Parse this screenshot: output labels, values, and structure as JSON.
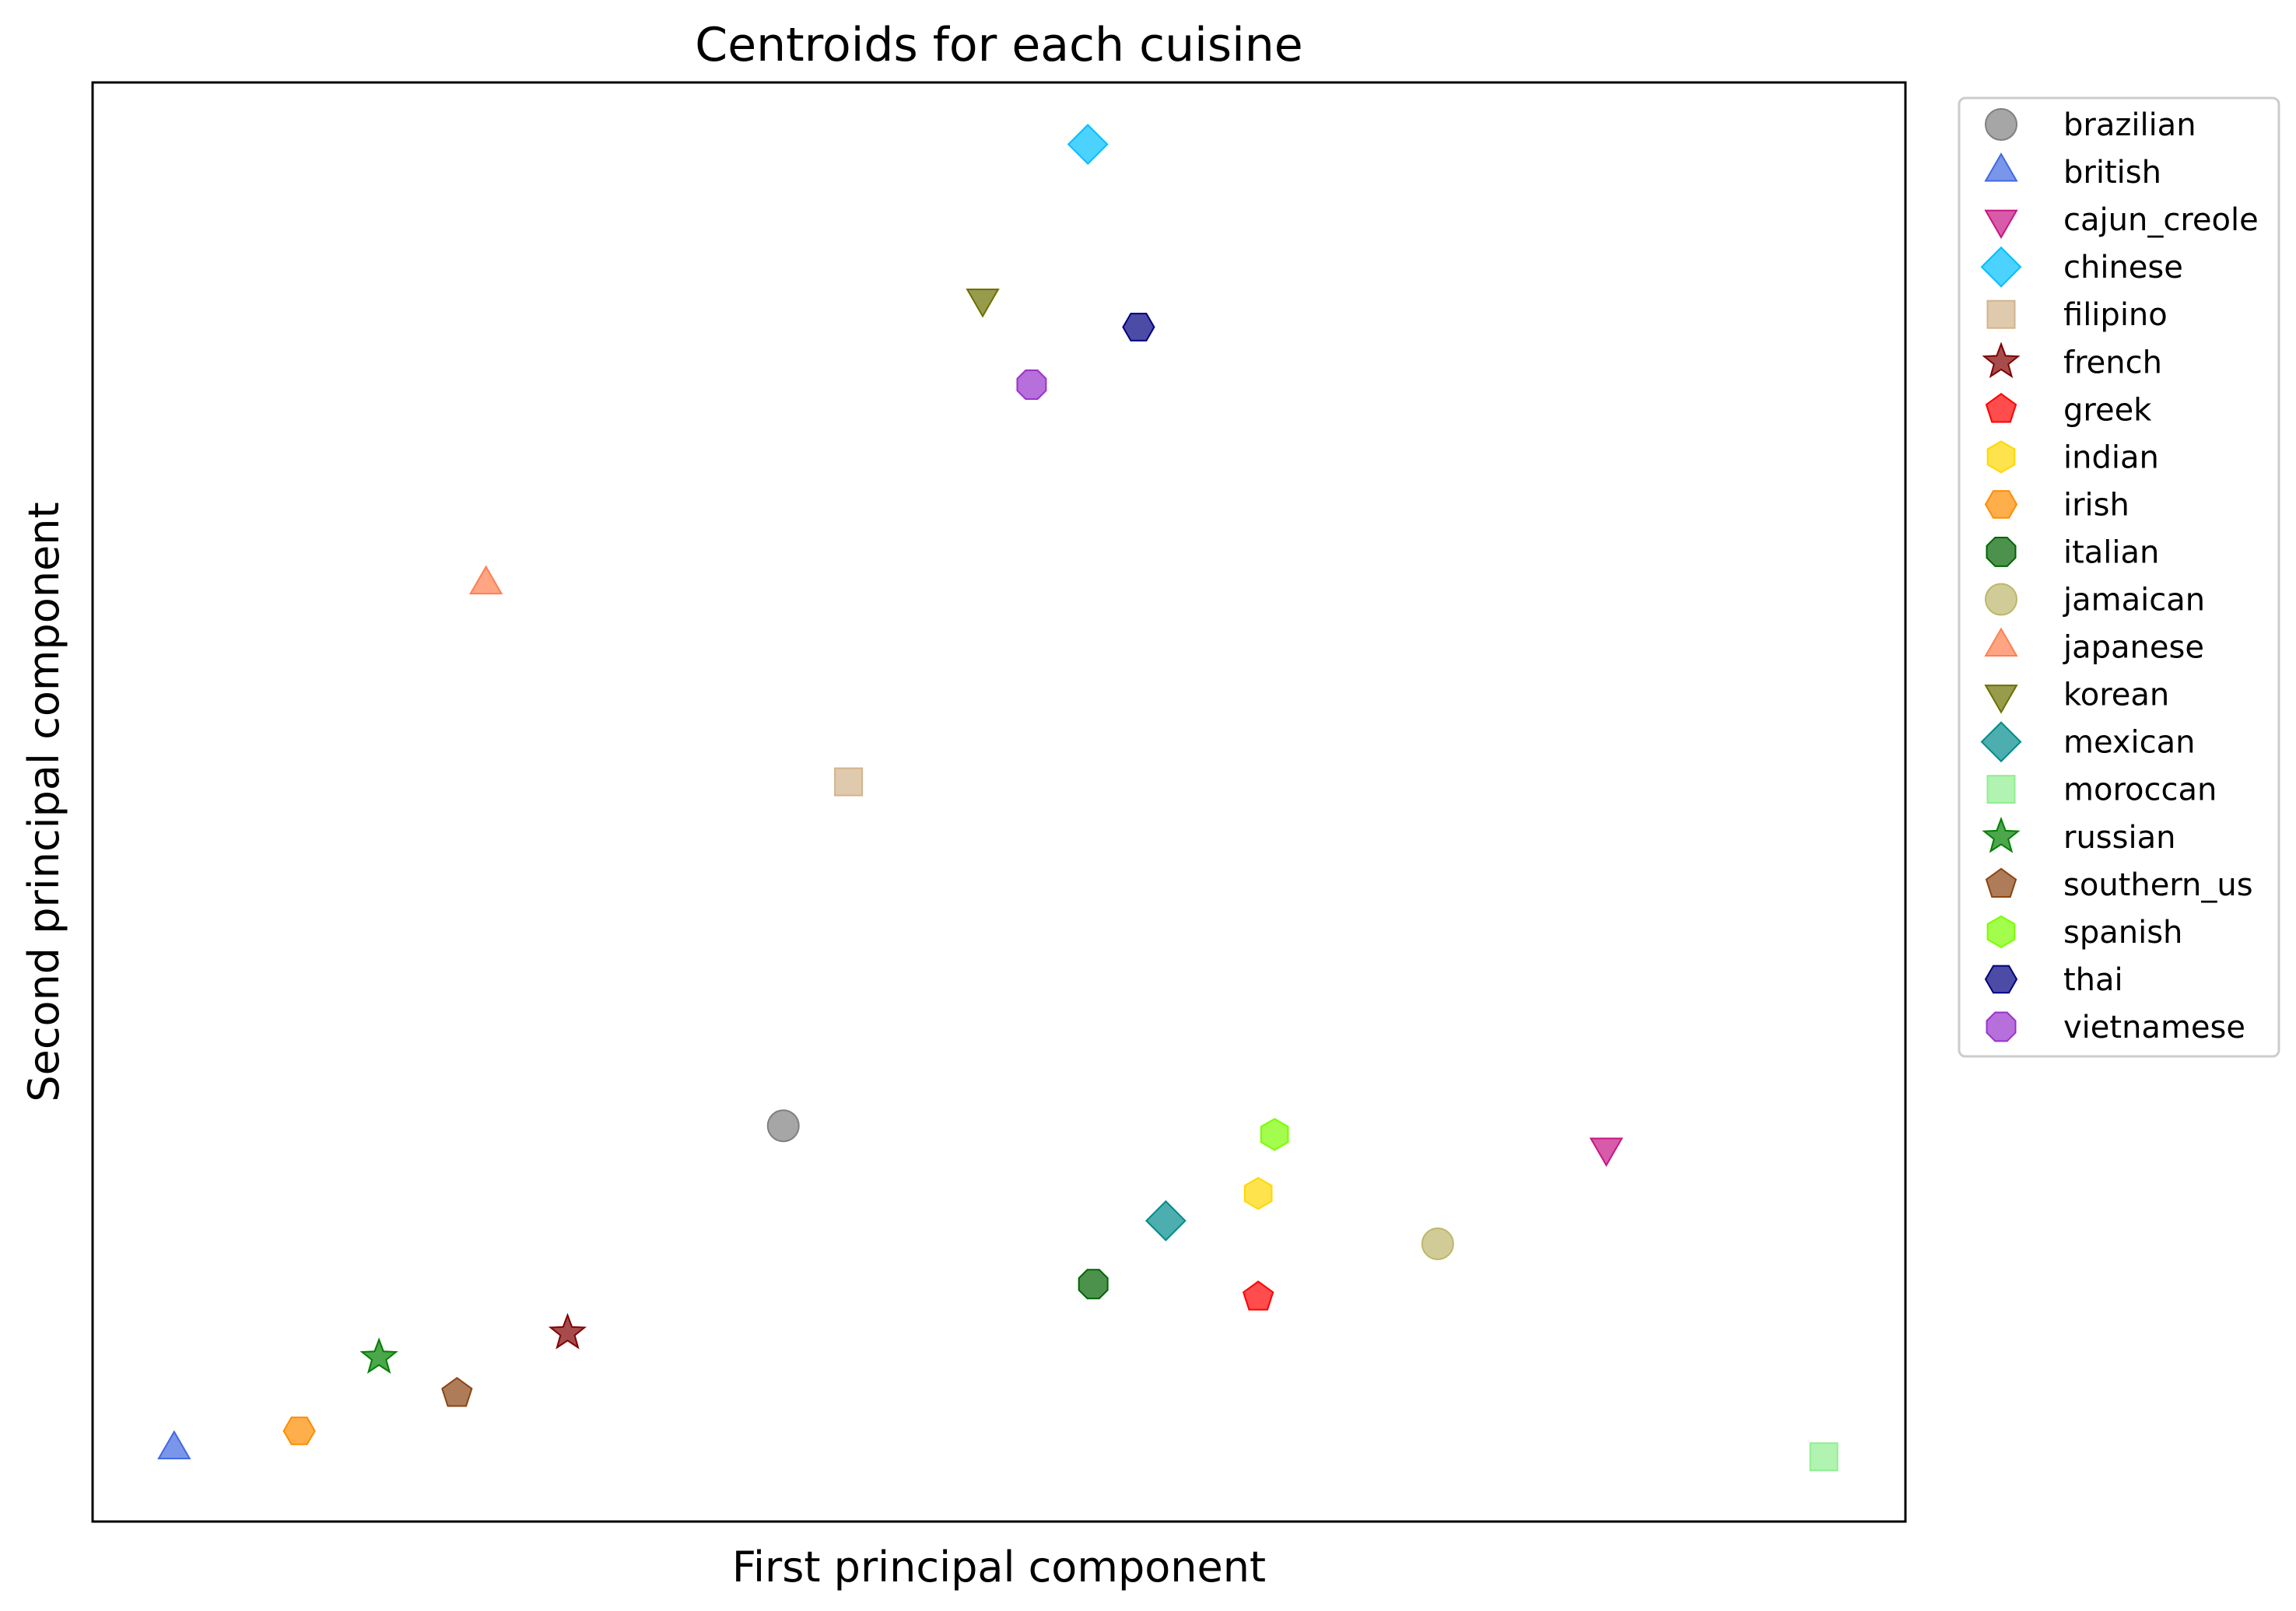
{
  "chart_data": {
    "type": "scatter",
    "title": "Centroids for each cuisine",
    "xlabel": "First principal component",
    "ylabel": "Second principal component",
    "xlim": [
      0,
      1
    ],
    "ylim": [
      0,
      1
    ],
    "xticks": [],
    "yticks": [],
    "grid": false,
    "legend_position": "outside-right",
    "series": [
      {
        "name": "brazilian",
        "marker": "circle",
        "color": "#808080",
        "x": 0.381,
        "y": 0.275
      },
      {
        "name": "british",
        "marker": "triangle-up",
        "color": "#4169e1",
        "x": 0.045,
        "y": 0.05
      },
      {
        "name": "cajun_creole",
        "marker": "triangle-down",
        "color": "#c71585",
        "x": 0.835,
        "y": 0.26
      },
      {
        "name": "chinese",
        "marker": "diamond",
        "color": "#00bfff",
        "x": 0.549,
        "y": 0.957
      },
      {
        "name": "filipino",
        "marker": "square",
        "color": "#d2b48c",
        "x": 0.417,
        "y": 0.514
      },
      {
        "name": "french",
        "marker": "star",
        "color": "#800000",
        "x": 0.262,
        "y": 0.131
      },
      {
        "name": "greek",
        "marker": "pentagon",
        "color": "#ff0000",
        "x": 0.643,
        "y": 0.156
      },
      {
        "name": "indian",
        "marker": "hexagon",
        "color": "#ffd700",
        "x": 0.643,
        "y": 0.228
      },
      {
        "name": "irish",
        "marker": "hexagon-flat",
        "color": "#ff8c00",
        "x": 0.114,
        "y": 0.063
      },
      {
        "name": "italian",
        "marker": "octagon",
        "color": "#006400",
        "x": 0.552,
        "y": 0.165
      },
      {
        "name": "jamaican",
        "marker": "circle",
        "color": "#bdb76b",
        "x": 0.742,
        "y": 0.193
      },
      {
        "name": "japanese",
        "marker": "triangle-up",
        "color": "#ff7f50",
        "x": 0.217,
        "y": 0.651
      },
      {
        "name": "korean",
        "marker": "triangle-down",
        "color": "#6b7000",
        "x": 0.491,
        "y": 0.85
      },
      {
        "name": "mexican",
        "marker": "diamond",
        "color": "#008b8b",
        "x": 0.592,
        "y": 0.209
      },
      {
        "name": "moroccan",
        "marker": "square",
        "color": "#90ee90",
        "x": 0.955,
        "y": 0.045
      },
      {
        "name": "russian",
        "marker": "star",
        "color": "#008000",
        "x": 0.158,
        "y": 0.114
      },
      {
        "name": "southern_us",
        "marker": "pentagon",
        "color": "#8b4513",
        "x": 0.201,
        "y": 0.089
      },
      {
        "name": "spanish",
        "marker": "hexagon",
        "color": "#7cfc00",
        "x": 0.652,
        "y": 0.269
      },
      {
        "name": "thai",
        "marker": "hexagon-flat",
        "color": "#000080",
        "x": 0.577,
        "y": 0.83
      },
      {
        "name": "vietnamese",
        "marker": "octagon",
        "color": "#9932cc",
        "x": 0.518,
        "y": 0.79
      }
    ]
  }
}
